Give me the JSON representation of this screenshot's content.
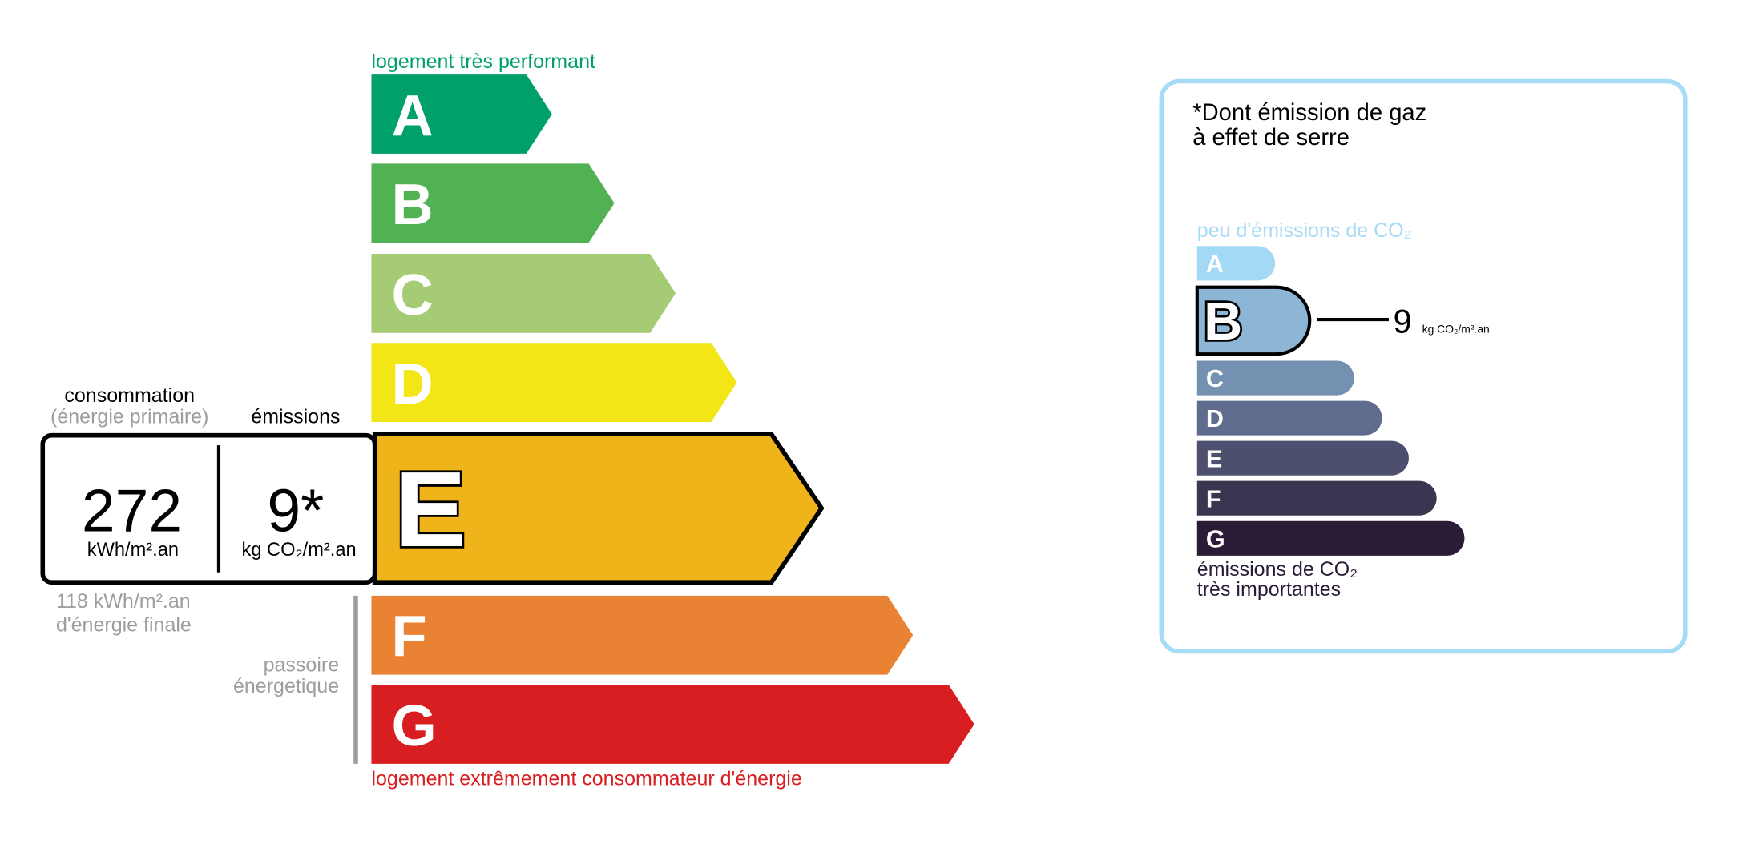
{
  "energy": {
    "top_label": "logement très performant",
    "bottom_label": "logement extrêmement consommateur d'énergie",
    "classes": [
      {
        "letter": "A",
        "color": "#00a06a"
      },
      {
        "letter": "B",
        "color": "#52b153"
      },
      {
        "letter": "C",
        "color": "#a5cc74"
      },
      {
        "letter": "D",
        "color": "#f2e617"
      },
      {
        "letter": "E",
        "color": "#efb41a"
      },
      {
        "letter": "F",
        "color": "#ea8234"
      },
      {
        "letter": "G",
        "color": "#d81e20"
      }
    ],
    "current_class": "E",
    "consumption_label": "consommation",
    "consumption_sublabel": "(énergie primaire)",
    "emissions_label": "émissions",
    "consumption_value": "272",
    "consumption_unit": "kWh/m².an",
    "emissions_value": "9*",
    "emissions_unit": "kg CO₂/m².an",
    "final_energy_value": "118 kWh/m².an",
    "final_energy_label": "d'énergie finale",
    "passoire_line1": "passoire",
    "passoire_line2": "énergetique"
  },
  "ges": {
    "title_line1": "*Dont émission de gaz",
    "title_line2": "à effet de serre",
    "top_label": "peu d'émissions de CO₂",
    "bottom_label_line1": "émissions de CO₂",
    "bottom_label_line2": "très importantes",
    "classes": [
      {
        "letter": "A",
        "color": "#a3d9f5"
      },
      {
        "letter": "B",
        "color": "#8db6d6"
      },
      {
        "letter": "C",
        "color": "#7491b2"
      },
      {
        "letter": "D",
        "color": "#5f6c8d"
      },
      {
        "letter": "E",
        "color": "#4d4f6f"
      },
      {
        "letter": "F",
        "color": "#3a3652"
      },
      {
        "letter": "G",
        "color": "#2a1c37"
      }
    ],
    "current_class": "B",
    "value": "9",
    "unit": "kg CO₂/m².an",
    "border_color": "#a6dcf5"
  }
}
